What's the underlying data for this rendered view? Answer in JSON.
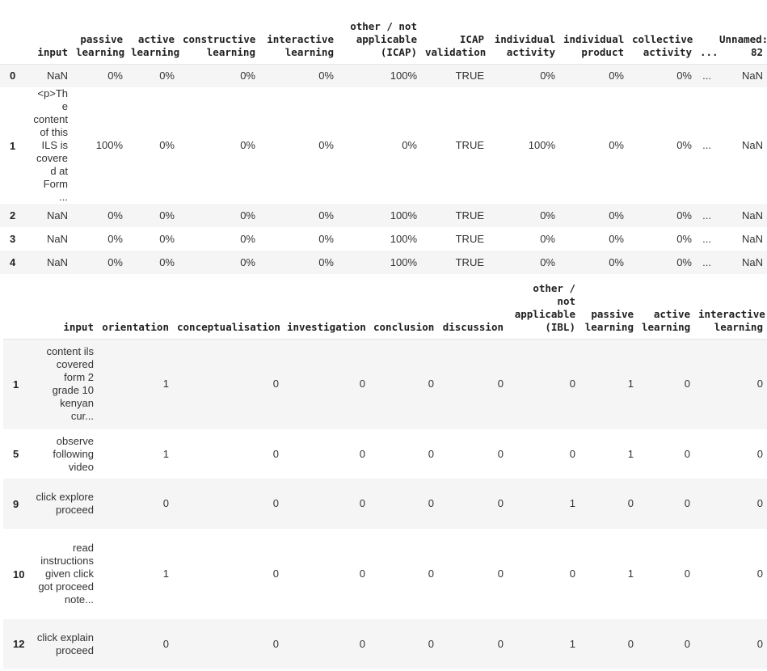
{
  "table1": {
    "columns": [
      "",
      "input",
      "passive learning",
      "active learning",
      "constructive learning",
      "interactive learning",
      "other / not applicable (ICAP)",
      "ICAP validation",
      "individual activity",
      "individual product",
      "collective activity",
      "...",
      "Unnamed: 82"
    ],
    "rows": [
      {
        "index": "0",
        "cells": [
          "NaN",
          "0%",
          "0%",
          "0%",
          "0%",
          "100%",
          "TRUE",
          "0%",
          "0%",
          "0%",
          "...",
          "NaN"
        ]
      },
      {
        "index": "1",
        "cells": [
          "<p>The content of this ILS is covered at Form ...",
          "100%",
          "0%",
          "0%",
          "0%",
          "0%",
          "TRUE",
          "100%",
          "0%",
          "0%",
          "...",
          "NaN"
        ]
      },
      {
        "index": "2",
        "cells": [
          "NaN",
          "0%",
          "0%",
          "0%",
          "0%",
          "100%",
          "TRUE",
          "0%",
          "0%",
          "0%",
          "...",
          "NaN"
        ]
      },
      {
        "index": "3",
        "cells": [
          "NaN",
          "0%",
          "0%",
          "0%",
          "0%",
          "100%",
          "TRUE",
          "0%",
          "0%",
          "0%",
          "...",
          "NaN"
        ]
      },
      {
        "index": "4",
        "cells": [
          "NaN",
          "0%",
          "0%",
          "0%",
          "0%",
          "100%",
          "TRUE",
          "0%",
          "0%",
          "0%",
          "...",
          "NaN"
        ]
      }
    ]
  },
  "table2": {
    "columns": [
      "",
      "input",
      "orientation",
      "conceptualisation",
      "investigation",
      "conclusion",
      "discussion",
      "other / not applicable (IBL)",
      "passive learning",
      "active learning",
      "interactive learning"
    ],
    "rows": [
      {
        "index": "1",
        "cells": [
          "content ils covered form 2 grade 10 kenyan cur...",
          "1",
          "0",
          "0",
          "0",
          "0",
          "0",
          "1",
          "0",
          "0"
        ]
      },
      {
        "index": "5",
        "cells": [
          "observe following video",
          "1",
          "0",
          "0",
          "0",
          "0",
          "0",
          "1",
          "0",
          "0"
        ]
      },
      {
        "index": "9",
        "cells": [
          "click explore proceed",
          "0",
          "0",
          "0",
          "0",
          "0",
          "1",
          "0",
          "0",
          "0"
        ]
      },
      {
        "index": "10",
        "cells": [
          "read instructions given click got proceed note...",
          "1",
          "0",
          "0",
          "0",
          "0",
          "0",
          "1",
          "0",
          "0"
        ]
      },
      {
        "index": "12",
        "cells": [
          "click explain proceed",
          "0",
          "0",
          "0",
          "0",
          "0",
          "1",
          "0",
          "0",
          "0"
        ]
      }
    ]
  }
}
